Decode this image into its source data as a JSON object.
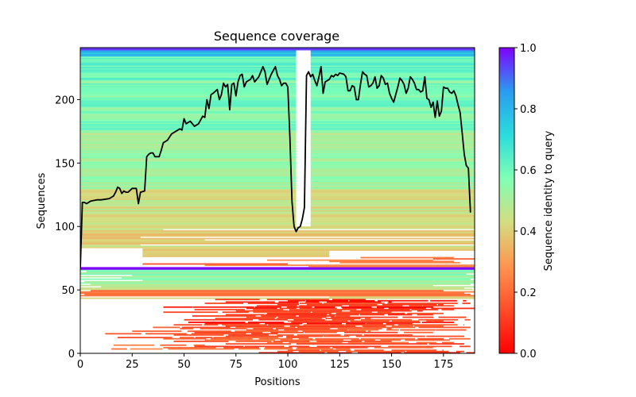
{
  "chart_data": {
    "type": "heatmap",
    "title": "Sequence coverage",
    "xlabel": "Positions",
    "ylabel": "Sequences",
    "xlim": [
      0,
      190
    ],
    "ylim": [
      0,
      241
    ],
    "xticks": [
      0,
      25,
      50,
      75,
      100,
      125,
      150,
      175
    ],
    "yticks": [
      0,
      50,
      100,
      150,
      200
    ],
    "colorbar": {
      "label": "Sequence identity to query",
      "colormap": "rainbow_r",
      "range": [
        0,
        1
      ],
      "ticks": [
        "0.0",
        "0.2",
        "0.4",
        "0.6",
        "0.8",
        "1.0"
      ],
      "stops": [
        "#ff0000",
        "#ff4d27",
        "#ff964f",
        "#d4dd80",
        "#80ffb4",
        "#2adcdd",
        "#2a9cf0",
        "#8000ff"
      ]
    },
    "line_color": "#000000",
    "coverage_line": {
      "positions": [
        0,
        1,
        2,
        3,
        5,
        8,
        10,
        14,
        16,
        17,
        18,
        19,
        20,
        21,
        22,
        23,
        25,
        27,
        28,
        29,
        31,
        32,
        33,
        34,
        35,
        36,
        38,
        39,
        40,
        42,
        44,
        46,
        48,
        49,
        50,
        51,
        52,
        53,
        55,
        57,
        59,
        60,
        61,
        62,
        63,
        64,
        66,
        67,
        68,
        69,
        70,
        71,
        72,
        73,
        74,
        75,
        76,
        77,
        78,
        79,
        80,
        82,
        83,
        84,
        86,
        87,
        88,
        89,
        90,
        92,
        94,
        95,
        96,
        97,
        98,
        99,
        100,
        101,
        102,
        103,
        104,
        105,
        106,
        107,
        108,
        109,
        110,
        111,
        112,
        113,
        114,
        115,
        116,
        117,
        118,
        120,
        121,
        122,
        123,
        124,
        125,
        127,
        128,
        129,
        130,
        131,
        132,
        133,
        134,
        135,
        136,
        137,
        138,
        139,
        140,
        141,
        142,
        143,
        144,
        145,
        146,
        147,
        148,
        149,
        150,
        151,
        152,
        153,
        154,
        155,
        156,
        157,
        158,
        159,
        160,
        161,
        162,
        163,
        164,
        165,
        166,
        167,
        168,
        169,
        170,
        171,
        172,
        173,
        174,
        175,
        176,
        177,
        178,
        179,
        180,
        181,
        182,
        183,
        184,
        185,
        186,
        187,
        188
      ],
      "values": [
        67,
        119,
        119,
        118,
        120,
        121,
        121,
        122,
        124,
        127,
        131,
        130,
        126,
        128,
        127,
        127,
        130,
        130,
        118,
        127,
        128,
        155,
        157,
        158,
        158,
        155,
        155,
        160,
        166,
        168,
        173,
        175,
        177,
        176,
        185,
        181,
        182,
        183,
        179,
        181,
        187,
        186,
        200,
        193,
        204,
        205,
        208,
        200,
        204,
        213,
        210,
        212,
        192,
        212,
        213,
        203,
        214,
        219,
        220,
        210,
        214,
        216,
        219,
        214,
        218,
        222,
        226,
        222,
        212,
        220,
        226,
        219,
        216,
        211,
        213,
        213,
        210,
        170,
        120,
        100,
        96,
        99,
        100,
        106,
        115,
        219,
        222,
        218,
        220,
        215,
        211,
        218,
        226,
        205,
        214,
        216,
        219,
        218,
        220,
        219,
        221,
        220,
        218,
        207,
        207,
        211,
        210,
        200,
        200,
        212,
        222,
        220,
        219,
        210,
        211,
        213,
        218,
        209,
        211,
        219,
        217,
        212,
        213,
        205,
        201,
        198,
        204,
        210,
        217,
        215,
        212,
        205,
        209,
        218,
        216,
        213,
        208,
        208,
        206,
        207,
        218,
        201,
        200,
        194,
        198,
        186,
        199,
        187,
        191,
        210,
        209,
        209,
        206,
        205,
        207,
        203,
        196,
        190,
        174,
        157,
        148,
        146,
        111
      ]
    },
    "row_bands": [
      {
        "rows": [
          0,
          2
        ],
        "identity": 0.12,
        "segments": [
          [
            86,
            190
          ],
          [
            95,
            185
          ],
          [
            100,
            175
          ]
        ]
      },
      {
        "rows": [
          3,
          9
        ],
        "identity": 0.18,
        "segments": [
          [
            15,
            130
          ],
          [
            40,
            170
          ],
          [
            55,
            188
          ],
          [
            16,
            60
          ],
          [
            70,
            185
          ],
          [
            90,
            180
          ],
          [
            45,
            150
          ]
        ]
      },
      {
        "rows": [
          10,
          20
        ],
        "identity": 0.15,
        "segments": [
          [
            60,
            178
          ],
          [
            40,
            188
          ],
          [
            18,
            110
          ],
          [
            70,
            185
          ],
          [
            45,
            160
          ],
          [
            12,
            95
          ],
          [
            55,
            170
          ],
          [
            25,
            140
          ],
          [
            80,
            186
          ],
          [
            48,
            150
          ],
          [
            35,
            188
          ]
        ]
      },
      {
        "rows": [
          21,
          32
        ],
        "identity": 0.1,
        "segments": [
          [
            70,
            175
          ],
          [
            45,
            185
          ],
          [
            60,
            160
          ],
          [
            52,
            180
          ],
          [
            100,
            175
          ],
          [
            50,
            188
          ],
          [
            65,
            140
          ],
          [
            80,
            186
          ],
          [
            54,
            130
          ],
          [
            70,
            170
          ],
          [
            90,
            175
          ],
          [
            40,
            150
          ]
        ]
      },
      {
        "rows": [
          33,
          42
        ],
        "identity": 0.08,
        "segments": [
          [
            75,
            165
          ],
          [
            55,
            180
          ],
          [
            80,
            190
          ],
          [
            40,
            170
          ],
          [
            85,
            180
          ],
          [
            95,
            175
          ],
          [
            60,
            188
          ],
          [
            70,
            150
          ],
          [
            100,
            186
          ],
          [
            65,
            140
          ]
        ]
      },
      {
        "rows": [
          43,
          44
        ],
        "identity": 0.35,
        "segments": [
          [
            0,
            190
          ],
          [
            120,
            190
          ]
        ]
      },
      {
        "rows": [
          45,
          49
        ],
        "identity": 0.2,
        "segments": [
          [
            0,
            190
          ],
          [
            2,
            188
          ],
          [
            0,
            185
          ],
          [
            0,
            190
          ],
          [
            5,
            175
          ]
        ]
      },
      {
        "rows": [
          50,
          54
        ],
        "identity": 0.45,
        "segments": [
          [
            0,
            189
          ],
          [
            0,
            185
          ],
          [
            10,
            190
          ],
          [
            0,
            170
          ],
          [
            5,
            188
          ]
        ]
      },
      {
        "rows": [
          55,
          65
        ],
        "identity": 0.55,
        "segments": [
          [
            0,
            190
          ],
          [
            2,
            190
          ],
          [
            30,
            190
          ],
          [
            0,
            188
          ],
          [
            20,
            190
          ],
          [
            0,
            190
          ],
          [
            25,
            190
          ],
          [
            0,
            186
          ],
          [
            0,
            190
          ],
          [
            3,
            190
          ],
          [
            0,
            190
          ]
        ]
      },
      {
        "rows": [
          66,
          67
        ],
        "identity": 1.0,
        "segments": [
          [
            0,
            190
          ],
          [
            0,
            190
          ]
        ]
      },
      {
        "rows": [
          68,
          70
        ],
        "identity": 0.2,
        "segments": [
          [
            110,
            190
          ],
          [
            60,
            190
          ],
          [
            30,
            100
          ]
        ]
      },
      {
        "rows": [
          71,
          75
        ],
        "identity": 0.24,
        "segments": [
          [
            125,
            183
          ],
          [
            120,
            180
          ],
          [
            90,
            170
          ],
          [
            170,
            190
          ],
          [
            135,
            180
          ]
        ]
      },
      {
        "rows": [
          76,
          84
        ],
        "identity": 0.42,
        "segments": [
          [
            30,
            120
          ],
          [
            30,
            120
          ],
          [
            30,
            120
          ],
          [
            30,
            120
          ],
          [
            30,
            120
          ],
          [
            30,
            190
          ],
          [
            30,
            190
          ],
          [
            0,
            190
          ],
          [
            0,
            190
          ]
        ]
      },
      {
        "rows": [
          85,
          99
        ],
        "identity": 0.4,
        "segments": [
          [
            0,
            29
          ],
          [
            0,
            190
          ],
          [
            0,
            190
          ],
          [
            0,
            190
          ],
          [
            0,
            60
          ],
          [
            0,
            190
          ],
          [
            0,
            29
          ],
          [
            0,
            190
          ],
          [
            0,
            190
          ],
          [
            0,
            190
          ],
          [
            0,
            190
          ],
          [
            0,
            190
          ],
          [
            0,
            40
          ],
          [
            0,
            190
          ],
          [
            0,
            190
          ]
        ]
      },
      {
        "rows": [
          100,
          129
        ],
        "identity": 0.45,
        "segments": [
          [
            0,
            190
          ]
        ]
      },
      {
        "rows": [
          130,
          175
        ],
        "identity": 0.52,
        "segments": [
          [
            0,
            190
          ]
        ]
      },
      {
        "rows": [
          176,
          215
        ],
        "identity": 0.58,
        "segments": [
          [
            0,
            190
          ]
        ]
      },
      {
        "rows": [
          216,
          233
        ],
        "identity": 0.62,
        "segments": [
          [
            0,
            190
          ]
        ]
      },
      {
        "rows": [
          234,
          238
        ],
        "identity": 0.8,
        "segments": [
          [
            0,
            190
          ]
        ]
      },
      {
        "rows": [
          239,
          240
        ],
        "identity": 0.95,
        "segments": [
          [
            0,
            190
          ]
        ]
      }
    ],
    "gap_region": [
      104,
      111
    ]
  }
}
